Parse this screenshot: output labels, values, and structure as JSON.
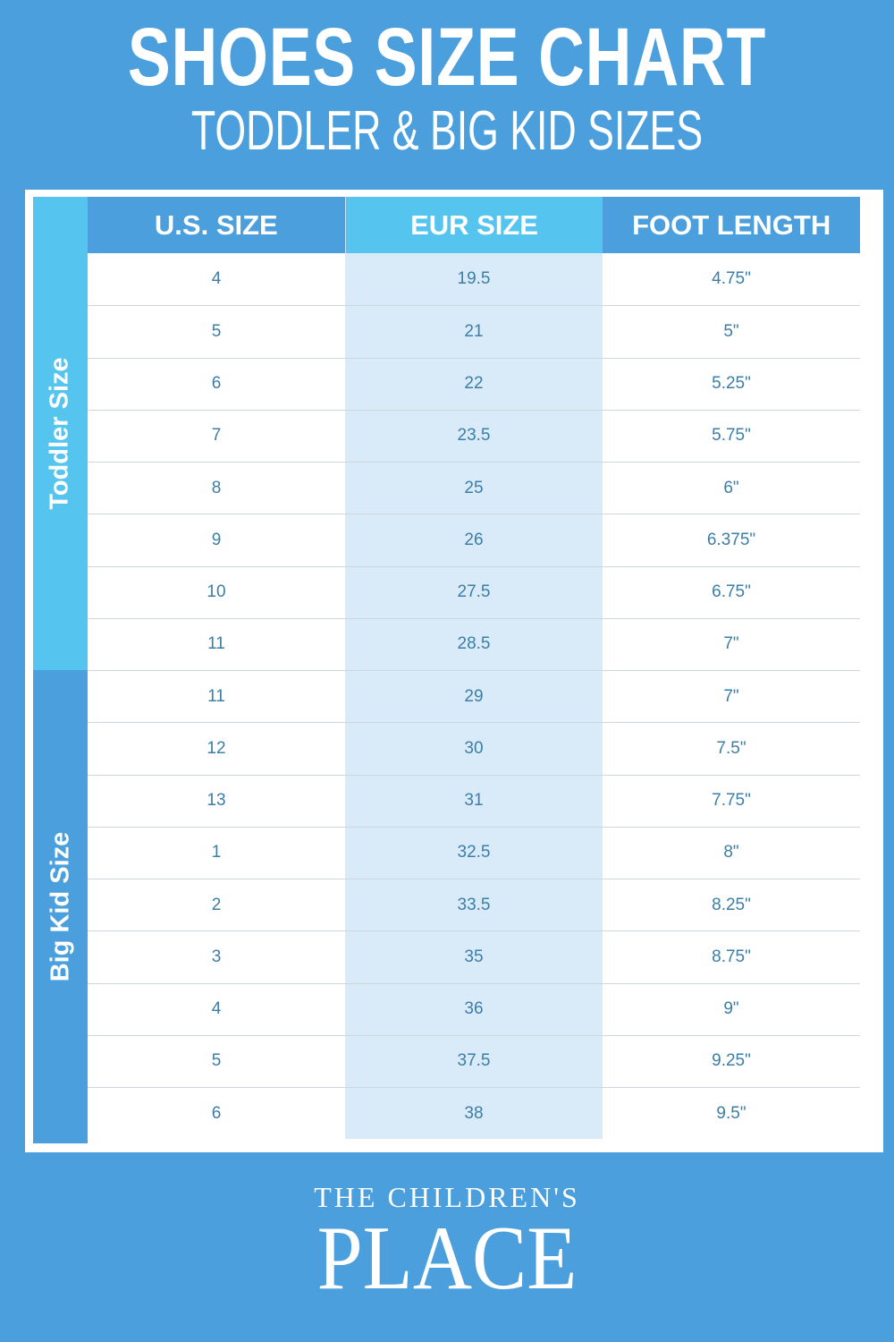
{
  "header": {
    "title": "SHOES SIZE CHART",
    "subtitle": "TODDLER & BIG KID SIZES"
  },
  "groups": {
    "toddler": "Toddler Size",
    "big_kid": "Big Kid Size"
  },
  "columns": [
    "U.S. SIZE",
    "EUR SIZE",
    "FOOT LENGTH"
  ],
  "rows": [
    [
      "4",
      "19.5",
      "4.75\""
    ],
    [
      "5",
      "21",
      "5\""
    ],
    [
      "6",
      "22",
      "5.25\""
    ],
    [
      "7",
      "23.5",
      "5.75\""
    ],
    [
      "8",
      "25",
      "6\""
    ],
    [
      "9",
      "26",
      "6.375\""
    ],
    [
      "10",
      "27.5",
      "6.75\""
    ],
    [
      "11",
      "28.5",
      "7\""
    ],
    [
      "11",
      "29",
      "7\""
    ],
    [
      "12",
      "30",
      "7.5\""
    ],
    [
      "13",
      "31",
      "7.75\""
    ],
    [
      "1",
      "32.5",
      "8\""
    ],
    [
      "2",
      "33.5",
      "8.25\""
    ],
    [
      "3",
      "35",
      "8.75\""
    ],
    [
      "4",
      "36",
      "9\""
    ],
    [
      "5",
      "37.5",
      "9.25\""
    ],
    [
      "6",
      "38",
      "9.5\""
    ]
  ],
  "logo": {
    "line1": "THE CHILDREN'S",
    "line2": "PLACE"
  },
  "colors": {
    "background": "#4a9fdc",
    "toddler": "#55c5f0",
    "eur_column": "#d9ebf9",
    "text": "#3c7ea6"
  }
}
